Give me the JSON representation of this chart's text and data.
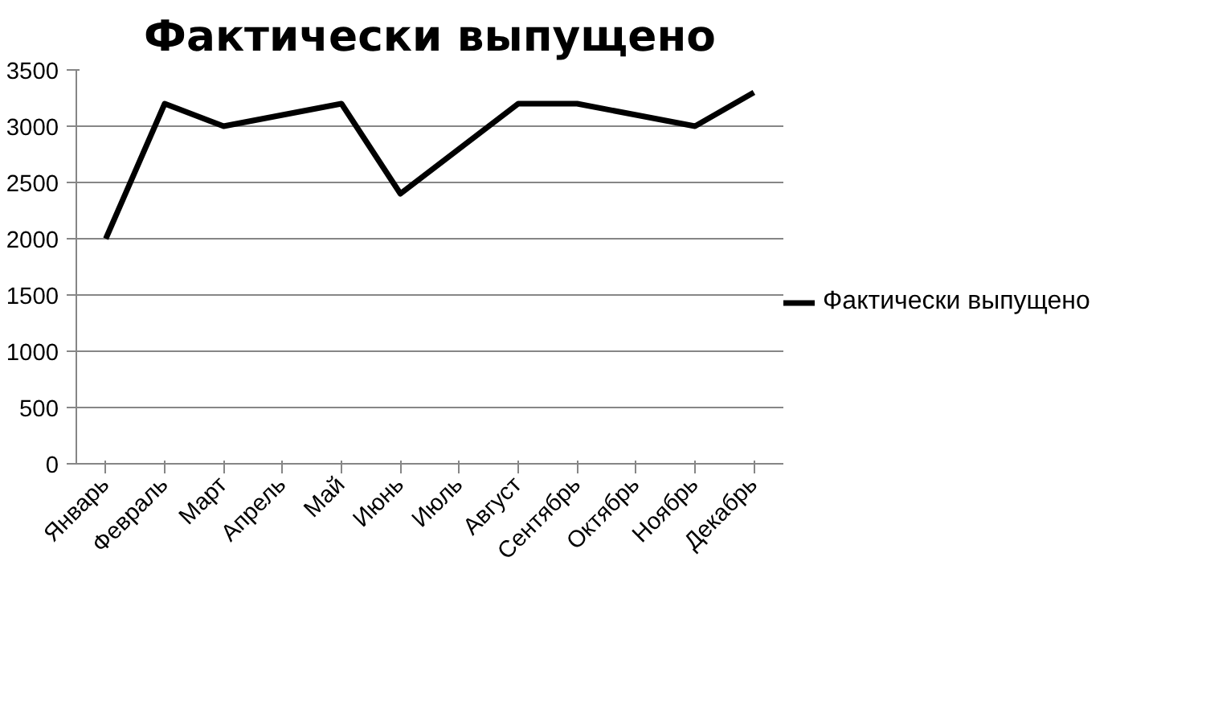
{
  "chart_data": {
    "type": "line",
    "title": "Фактически выпущено",
    "categories": [
      "Январь",
      "Февраль",
      "Март",
      "Апрель",
      "Май",
      "Июнь",
      "Июль",
      "Август",
      "Сентябрь",
      "Октябрь",
      "Ноябрь",
      "Декабрь"
    ],
    "series": [
      {
        "name": "Фактически выпущено",
        "color": "#000000",
        "values": [
          2000,
          3200,
          3000,
          3100,
          3200,
          2400,
          2800,
          3200,
          3200,
          3100,
          3000,
          3300
        ]
      }
    ],
    "ylim": [
      0,
      3500
    ],
    "yticks": [
      0,
      500,
      1000,
      1500,
      2000,
      2500,
      3000,
      3500
    ],
    "grid": "y",
    "legend": "right",
    "marker": "none",
    "line_style": "solid"
  }
}
